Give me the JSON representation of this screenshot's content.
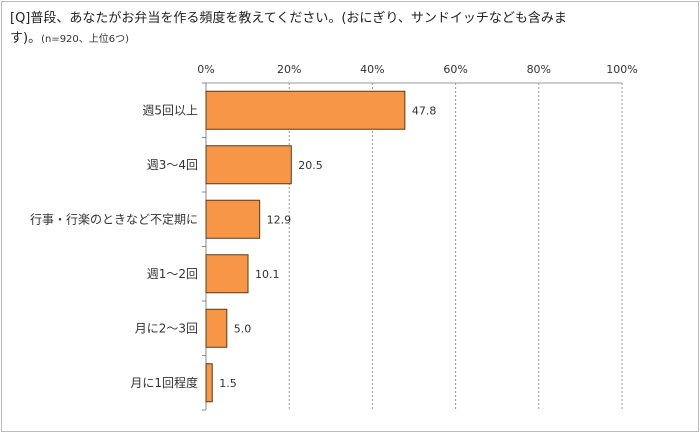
{
  "chart_data": {
    "type": "bar",
    "orientation": "horizontal",
    "title": "[Q]普段、あなたがお弁当を作る頻度を教えてください。(おにぎり、サンドイッチなども含みます)。",
    "subtitle": "(n=920、上位6つ)",
    "categories": [
      "週5回以上",
      "週3〜4回",
      "行事・行楽のときなど不定期に",
      "週1〜2回",
      "月に2〜3回",
      "月に1回程度"
    ],
    "values": [
      47.8,
      20.5,
      12.9,
      10.1,
      5.0,
      1.5
    ],
    "value_labels": [
      "47.8",
      "20.5",
      "12.9",
      "10.1",
      "5.0",
      "1.5"
    ],
    "xlim": [
      0,
      100
    ],
    "xticks": [
      "0%",
      "20%",
      "40%",
      "60%",
      "80%",
      "100%"
    ],
    "xlabel": "",
    "ylabel": "",
    "grid": true,
    "bar_color": "#F79646",
    "bar_edge_color": "#5a3a1a"
  }
}
